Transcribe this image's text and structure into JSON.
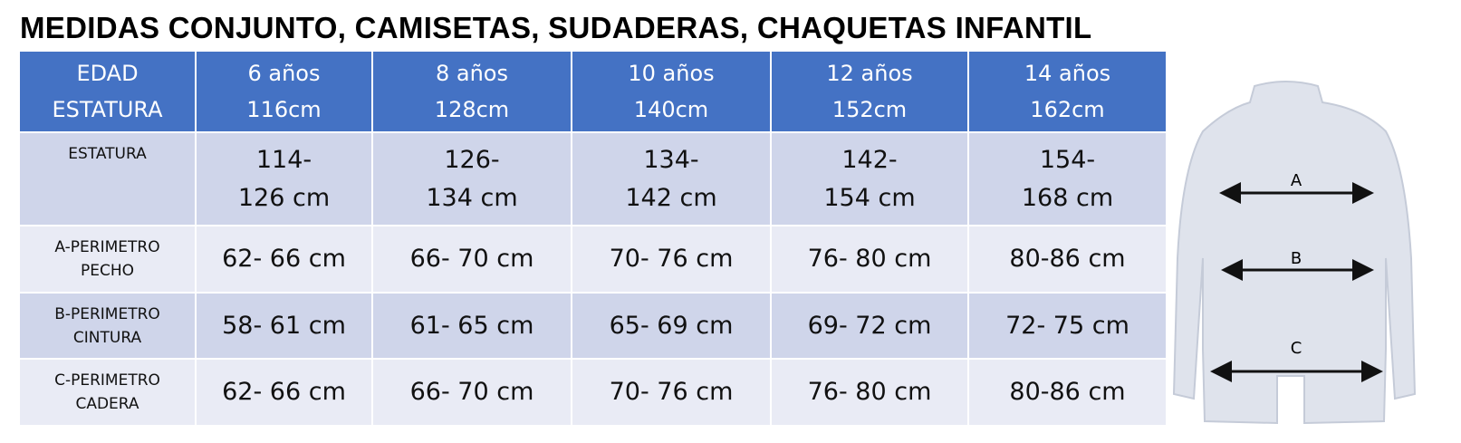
{
  "title": "MEDIDAS CONJUNTO, CAMISETAS, SUDADERAS, CHAQUETAS INFANTIL",
  "table": {
    "header": [
      [
        "EDAD",
        "ESTATURA"
      ],
      [
        "6 años",
        "116cm"
      ],
      [
        "8 años",
        "128cm"
      ],
      [
        "10 años",
        "140cm"
      ],
      [
        "12 años",
        "152cm"
      ],
      [
        "14 años",
        "162cm"
      ]
    ],
    "rows": [
      [
        [
          "ESTATURA"
        ],
        [
          "114-",
          "126 cm"
        ],
        [
          "126-",
          "134 cm"
        ],
        [
          "134-",
          "142 cm"
        ],
        [
          "142-",
          "154 cm"
        ],
        [
          "154-",
          "168 cm"
        ]
      ],
      [
        [
          "A-PERIMETRO",
          "PECHO"
        ],
        [
          "62- 66 cm"
        ],
        [
          "66- 70 cm"
        ],
        [
          "70- 76 cm"
        ],
        [
          "76- 80 cm"
        ],
        [
          "80-86 cm"
        ]
      ],
      [
        [
          "B-PERIMETRO",
          "CINTURA"
        ],
        [
          "58- 61 cm"
        ],
        [
          "61- 65 cm"
        ],
        [
          "65- 69 cm"
        ],
        [
          "69- 72 cm"
        ],
        [
          "72- 75 cm"
        ]
      ],
      [
        [
          "C-PERIMETRO",
          "CADERA"
        ],
        [
          "62- 66 cm"
        ],
        [
          "66- 70 cm"
        ],
        [
          "70- 76 cm"
        ],
        [
          "76- 80 cm"
        ],
        [
          "80-86 cm"
        ]
      ]
    ]
  },
  "diagram": {
    "labels": [
      "A",
      "B",
      "C"
    ]
  }
}
